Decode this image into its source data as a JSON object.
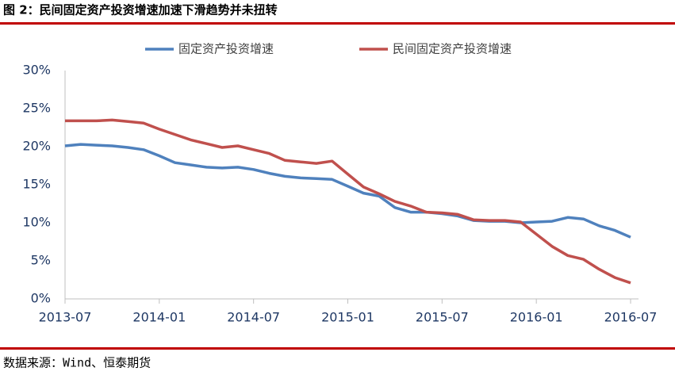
{
  "chart_data": {
    "type": "line",
    "title": "图 2：民间固定资产投资增速加速下滑趋势并未扭转",
    "source": "数据来源：Wind、恒泰期货",
    "categories": [
      "2013-07",
      null,
      null,
      null,
      null,
      null,
      "2014-01",
      null,
      null,
      null,
      null,
      null,
      "2014-07",
      null,
      null,
      null,
      null,
      null,
      "2015-01",
      null,
      null,
      null,
      null,
      null,
      "2015-07",
      null,
      null,
      null,
      null,
      null,
      "2016-01",
      null,
      null,
      null,
      null,
      null,
      "2016-07"
    ],
    "series": [
      {
        "name": "固定资产投资增速",
        "color": "#4f81bd",
        "values": [
          20.1,
          20.3,
          20.2,
          20.1,
          19.9,
          19.6,
          18.8,
          17.9,
          17.6,
          17.3,
          17.2,
          17.3,
          17.0,
          16.5,
          16.1,
          15.9,
          15.8,
          15.7,
          14.8,
          13.9,
          13.5,
          12.0,
          11.4,
          11.4,
          11.2,
          10.9,
          10.3,
          10.2,
          10.2,
          10.0,
          10.1,
          10.2,
          10.7,
          10.5,
          9.6,
          9.0,
          8.1
        ]
      },
      {
        "name": "民间固定资产投资增速",
        "color": "#c0504d",
        "values": [
          23.4,
          23.4,
          23.4,
          23.5,
          23.3,
          23.1,
          22.3,
          21.6,
          20.9,
          20.4,
          19.9,
          20.1,
          19.6,
          19.1,
          18.2,
          18.0,
          17.8,
          18.1,
          16.4,
          14.7,
          13.8,
          12.8,
          12.2,
          11.4,
          11.3,
          11.1,
          10.4,
          10.3,
          10.3,
          10.1,
          8.5,
          6.9,
          5.7,
          5.2,
          3.9,
          2.8,
          2.1
        ]
      }
    ],
    "ylim": [
      0,
      30
    ],
    "yticks": [
      {
        "value": 0,
        "label": "0%"
      },
      {
        "value": 5,
        "label": "5%"
      },
      {
        "value": 10,
        "label": "10%"
      },
      {
        "value": 15,
        "label": "15%"
      },
      {
        "value": 20,
        "label": "20%"
      },
      {
        "value": 25,
        "label": "25%"
      },
      {
        "value": 30,
        "label": "30%"
      }
    ],
    "legend": "top"
  }
}
